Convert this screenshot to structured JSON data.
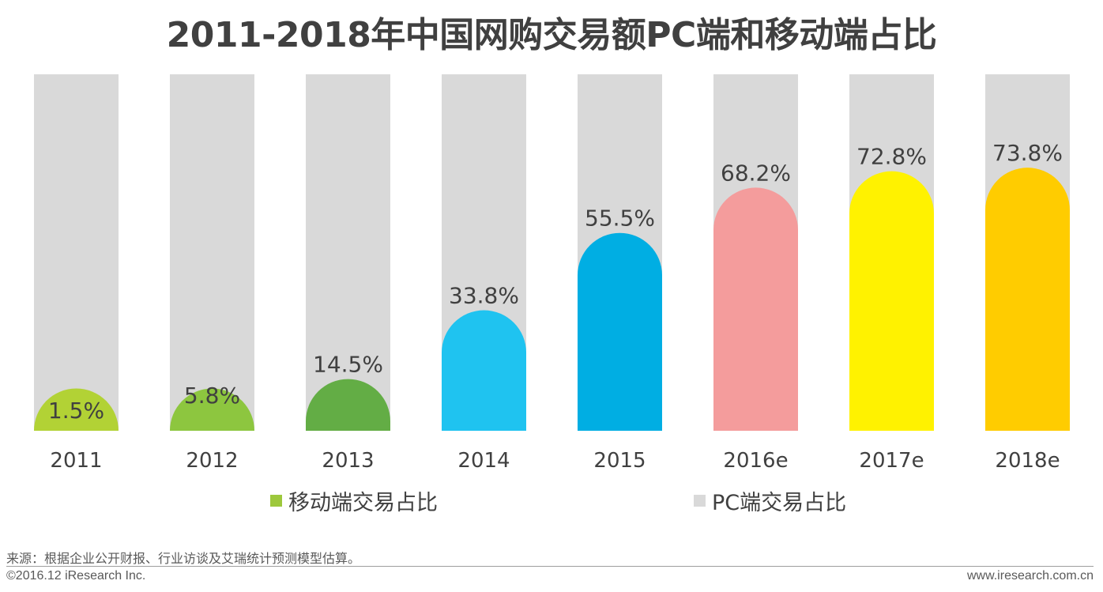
{
  "title": "2011-2018年中国网购交易额PC端和移动端占比",
  "legend": {
    "mobile": "移动端交易占比",
    "pc": "PC端交易占比"
  },
  "source": "来源：根据企业公开财报、行业访谈及艾瑞统计预测模型估算。",
  "copyright": "©2016.12 iResearch Inc.",
  "website": "www.iresearch.com.cn",
  "colors": {
    "pc_background": "#d9d9d9",
    "mobile_legend": "#9dc83c",
    "text": "#404040"
  },
  "chart_data": {
    "type": "bar",
    "title": "2011-2018年中国网购交易额PC端和移动端占比",
    "categories": [
      "2011",
      "2012",
      "2013",
      "2014",
      "2015",
      "2016e",
      "2017e",
      "2018e"
    ],
    "series": [
      {
        "name": "移动端交易占比",
        "values": [
          1.5,
          5.8,
          14.5,
          33.8,
          55.5,
          68.2,
          72.8,
          73.8
        ],
        "labels": [
          "1.5%",
          "5.8%",
          "14.5%",
          "33.8%",
          "55.5%",
          "68.2%",
          "72.8%",
          "73.8%"
        ],
        "colors": [
          "#b2d235",
          "#8dc63f",
          "#63ad45",
          "#1fc3f0",
          "#00aee3",
          "#f49c9c",
          "#fff200",
          "#ffcc00"
        ]
      },
      {
        "name": "PC端交易占比",
        "values": [
          98.5,
          94.2,
          85.5,
          66.2,
          44.5,
          31.8,
          27.2,
          26.2
        ],
        "color": "#d9d9d9"
      }
    ],
    "ylim": [
      0,
      100
    ],
    "stacked": true,
    "grid": false,
    "legend_position": "bottom"
  }
}
